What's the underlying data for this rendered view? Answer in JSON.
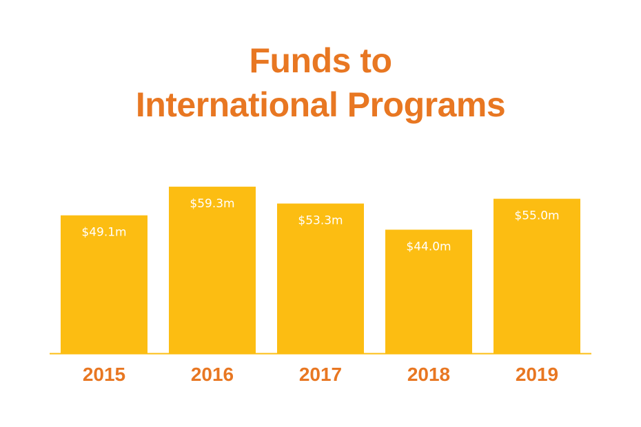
{
  "title_lines": [
    "Funds to",
    "International Programs"
  ],
  "colors": {
    "title": "#e87722",
    "bar": "#fcbd12",
    "baseline": "#fcbd12",
    "tick_label": "#e87722",
    "value_label": "#ffffff"
  },
  "chart_data": {
    "type": "bar",
    "title": "Funds to International Programs",
    "categories": [
      "2015",
      "2016",
      "2017",
      "2018",
      "2019"
    ],
    "values": [
      49.1,
      59.3,
      53.3,
      44.0,
      55.0
    ],
    "value_labels": [
      "$49.1m",
      "$59.3m",
      "$53.3m",
      "$44.0m",
      "$55.0m"
    ],
    "xlabel": "",
    "ylabel": "",
    "unit": "$m",
    "ylim": [
      0,
      61
    ],
    "grid": false,
    "legend": "none"
  }
}
